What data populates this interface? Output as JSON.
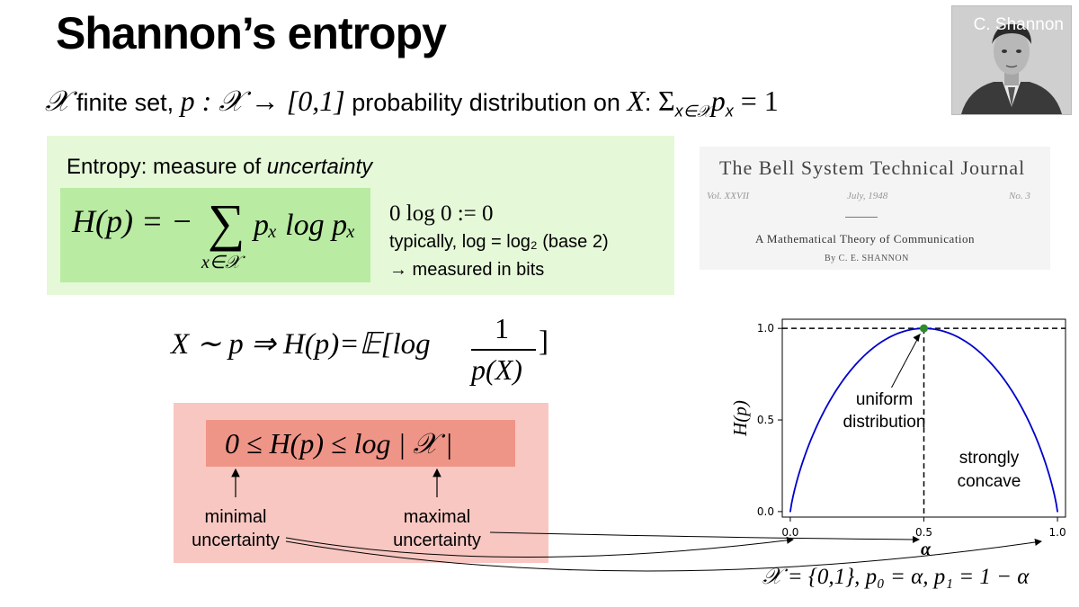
{
  "title": "Shannon’s entropy",
  "portrait": {
    "label": "C. Shannon"
  },
  "definition": {
    "set_symbol": "𝒳",
    "text1": " finite set, ",
    "map": "p : 𝒳 → [0,1]",
    "text2": " probability distribution on ",
    "X": "X",
    "text3": ": ",
    "sum": "Σ",
    "sub": "x∈𝒳",
    "rest": "p",
    "rest_sub": "x",
    "eq": " = 1"
  },
  "entropy": {
    "heading_plain": "Entropy: measure of ",
    "heading_italic": "uncertainty",
    "formula_left": "H(p) = −",
    "sigma": "∑",
    "sigma_sub": "x∈𝒳",
    "formula_right": "pₓ log pₓ",
    "note1": "0 log 0 := 0",
    "note2": "typically, log = log₂ (base 2)",
    "note3": "→ measured in bits"
  },
  "journal": {
    "title": "The Bell System Technical Journal",
    "vol": "Vol. XXVII",
    "date": "July, 1948",
    "no": "No. 3",
    "paper": "A Mathematical Theory of Communication",
    "author": "By C. E. SHANNON"
  },
  "expectation": {
    "lhs": "X ∼ p ⇒ H(p)=𝔼[log",
    "numerator": "1",
    "denominator": "p(X)",
    "close": "]"
  },
  "bounds": {
    "formula": "0 ≤ H(p) ≤ log | 𝒳 |",
    "min_label": "minimal uncertainty",
    "max_label": "maximal uncertainty"
  },
  "chart_data": {
    "type": "line",
    "x": [
      0,
      0.05,
      0.1,
      0.15,
      0.2,
      0.25,
      0.3,
      0.35,
      0.4,
      0.45,
      0.5,
      0.55,
      0.6,
      0.65,
      0.7,
      0.75,
      0.8,
      0.85,
      0.9,
      0.95,
      1.0
    ],
    "y": [
      0,
      0.286,
      0.469,
      0.61,
      0.722,
      0.811,
      0.881,
      0.934,
      0.971,
      0.993,
      1.0,
      0.993,
      0.971,
      0.934,
      0.881,
      0.811,
      0.722,
      0.61,
      0.469,
      0.286,
      0
    ],
    "xlabel": "α",
    "ylabel": "H(p)",
    "xticks": [
      "0.0",
      "0.5",
      "1.0"
    ],
    "yticks": [
      "0.0",
      "0.5",
      "1.0"
    ],
    "xlim": [
      -0.03,
      1.03
    ],
    "ylim": [
      -0.03,
      1.05
    ],
    "line_color": "#0000cc",
    "marker": {
      "x": 0.5,
      "y": 1.0,
      "color": "#2e8b2e"
    },
    "annotations": [
      "uniform distribution",
      "strongly concave"
    ],
    "caption": "𝒳 = {0,1}, p₀ = α, p₁ = 1 − α"
  }
}
